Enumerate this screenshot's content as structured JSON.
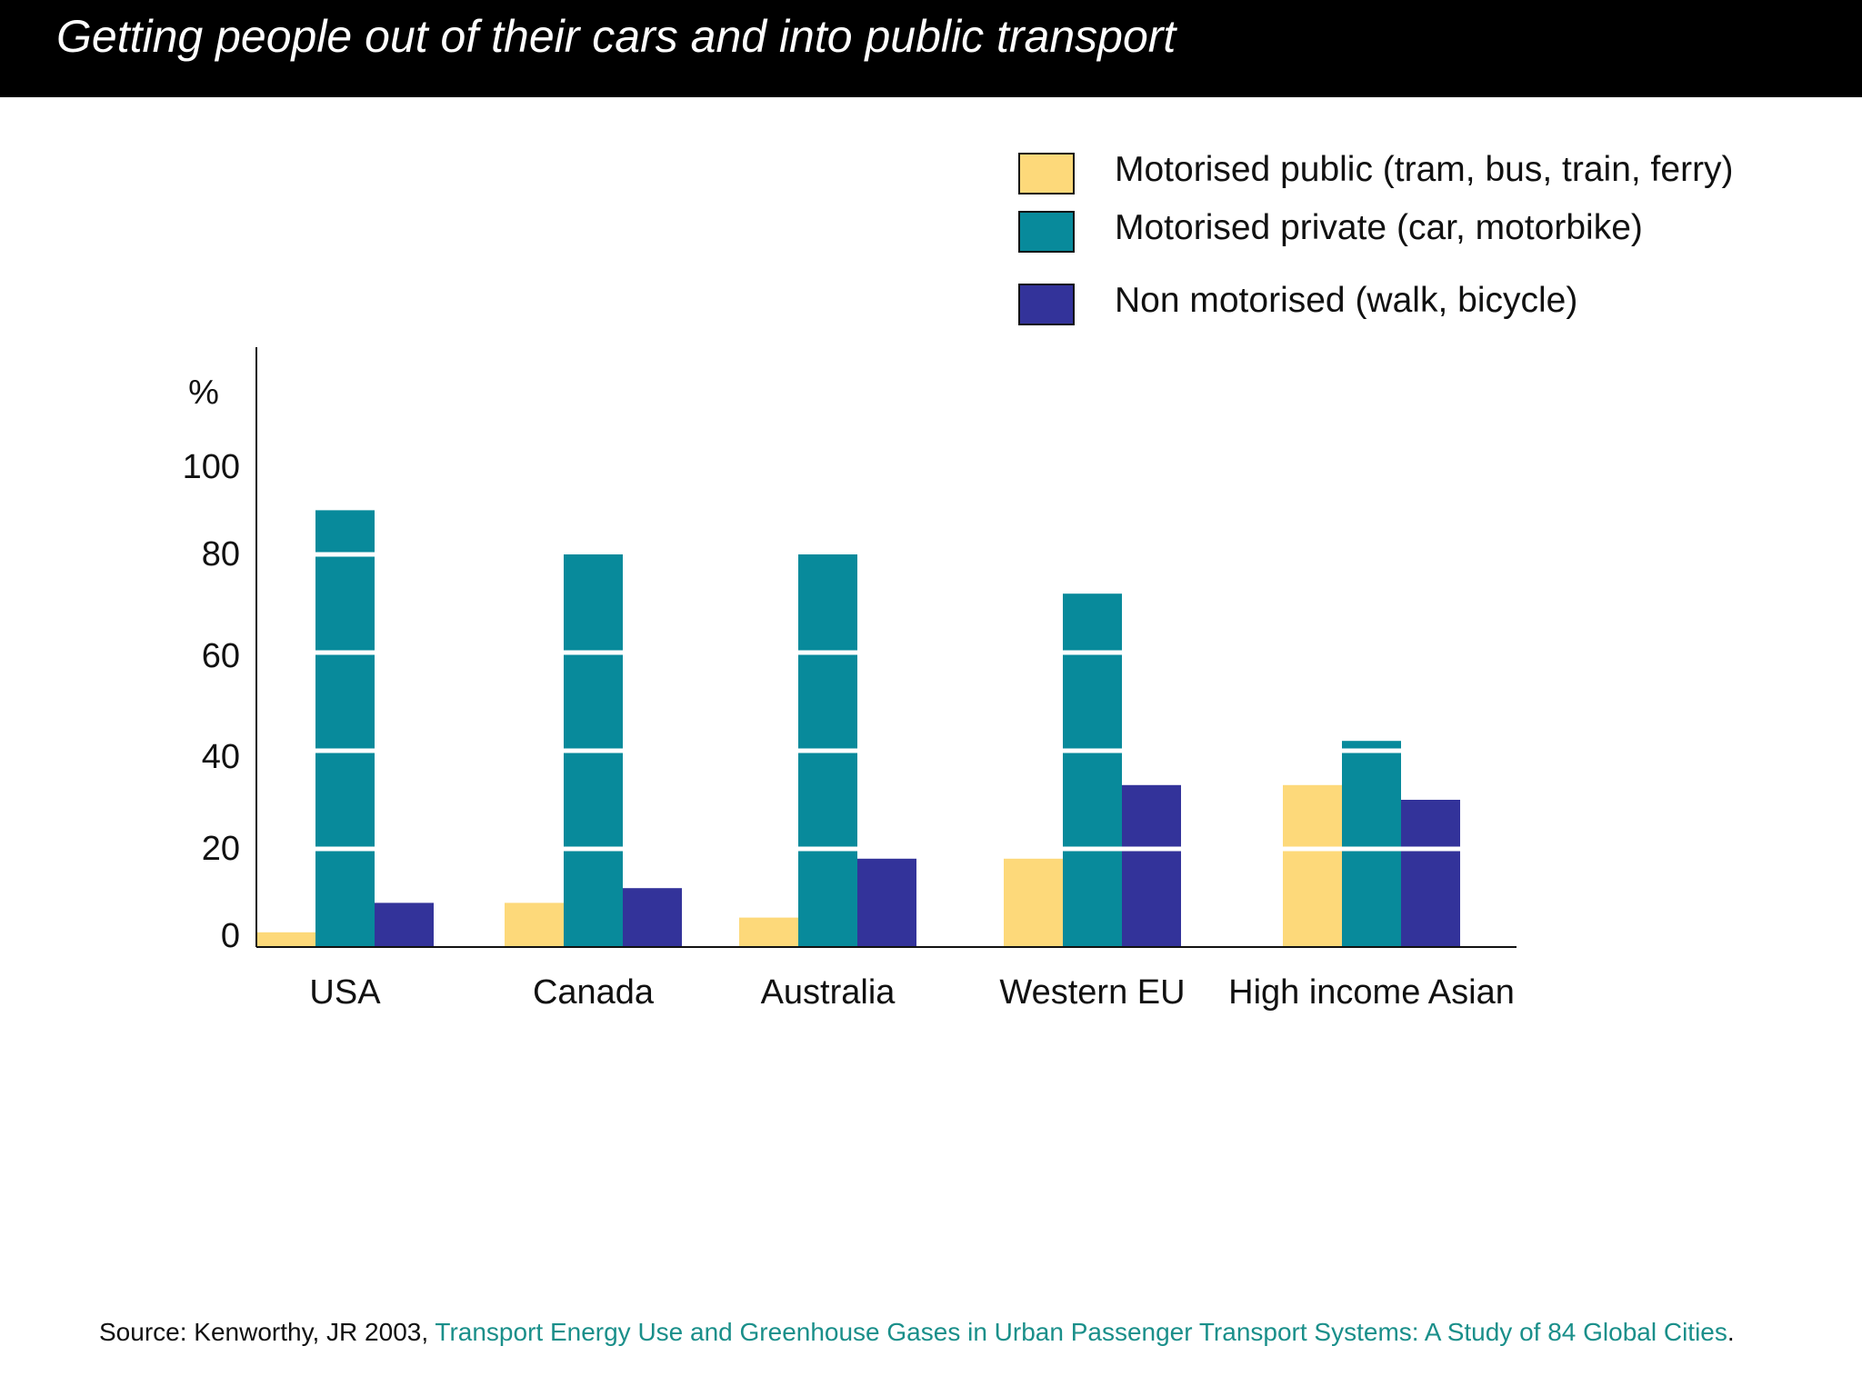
{
  "header": {
    "title": "Getting people out of their cars and into public transport"
  },
  "chart_data": {
    "type": "bar",
    "title": "",
    "xlabel": "",
    "ylabel": "%",
    "ylim": [
      0,
      120
    ],
    "yticks": [
      "0",
      "20",
      "40",
      "60",
      "80",
      "100"
    ],
    "grid": false,
    "legend_placement": "top-right",
    "categories": [
      "USA",
      "Canada",
      "Australia",
      "Western EU",
      "High income Asian"
    ],
    "series": [
      {
        "name": "Motorised public (tram, bus, train, ferry)",
        "color": "#fdd97a",
        "values": [
          3,
          9,
          6,
          18,
          33
        ]
      },
      {
        "name": "Motorised private (car, motorbike)",
        "color": "#088a9b",
        "values": [
          89,
          80,
          80,
          72,
          42
        ]
      },
      {
        "name": "Non motorised (walk, bicycle)",
        "color": "#33339a",
        "values": [
          9,
          12,
          18,
          33,
          30
        ]
      }
    ]
  },
  "footer": {
    "prefix": "Source: Kenworthy, JR 2003, ",
    "link_text": "Transport Energy Use and Greenhouse Gases in Urban Passenger Transport Systems: A Study of 84 Global Cities",
    "suffix": "."
  }
}
